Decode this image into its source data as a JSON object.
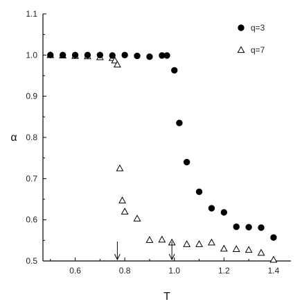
{
  "chart_data": {
    "type": "scatter",
    "title": "",
    "xlabel": "T",
    "ylabel": "α",
    "xlim": [
      0.47,
      1.47
    ],
    "ylim": [
      0.5,
      1.1
    ],
    "xticks": [
      "0.6",
      "0.8",
      "1.0",
      "1.2",
      "1.4"
    ],
    "yticks": [
      "0.5",
      "0.6",
      "0.7",
      "0.8",
      "0.9",
      "1.0",
      "1.1"
    ],
    "grid": false,
    "legend_position": "top-right",
    "series": [
      {
        "name": "q=3",
        "marker": "filled-circle",
        "color": "#000000",
        "x": [
          0.5,
          0.55,
          0.6,
          0.65,
          0.7,
          0.75,
          0.8,
          0.85,
          0.9,
          0.95,
          0.97,
          1.0,
          1.02,
          1.05,
          1.1,
          1.15,
          1.2,
          1.25,
          1.3,
          1.35,
          1.4
        ],
        "y": [
          1.0,
          1.0,
          1.0,
          1.0,
          1.0,
          0.999,
          1.0,
          0.998,
          0.996,
          0.999,
          0.999,
          0.963,
          0.835,
          0.74,
          0.668,
          0.628,
          0.618,
          0.583,
          0.582,
          0.581,
          0.557
        ]
      },
      {
        "name": "q=7",
        "marker": "open-triangle",
        "color": "#000000",
        "x": [
          0.5,
          0.55,
          0.6,
          0.65,
          0.7,
          0.75,
          0.76,
          0.77,
          0.78,
          0.79,
          0.8,
          0.85,
          0.9,
          0.95,
          0.99,
          1.05,
          1.1,
          1.15,
          1.2,
          1.25,
          1.3,
          1.35,
          1.4
        ],
        "y": [
          1.0,
          0.999,
          0.998,
          0.997,
          0.995,
          0.993,
          0.987,
          0.977,
          0.725,
          0.647,
          0.62,
          0.603,
          0.551,
          0.552,
          0.545,
          0.541,
          0.541,
          0.545,
          0.53,
          0.529,
          0.527,
          0.52,
          0.503
        ]
      }
    ],
    "annotations": [
      {
        "type": "down-arrow",
        "x": 0.77
      },
      {
        "type": "down-arrow",
        "x": 0.99
      }
    ]
  }
}
